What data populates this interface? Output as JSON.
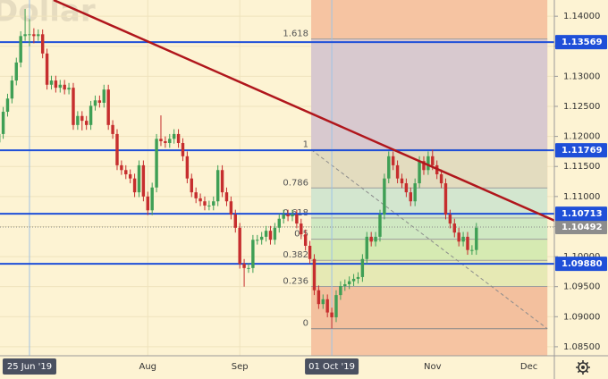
{
  "chart_data": {
    "type": "candlestick",
    "watermark": "Dollar",
    "x": [
      0,
      1,
      2,
      3,
      4,
      5,
      6,
      7,
      8,
      9,
      10,
      11,
      12,
      13,
      14,
      15,
      16,
      17,
      18,
      19,
      20,
      21,
      22,
      23,
      24,
      25,
      26,
      27,
      28,
      29,
      30,
      31,
      32,
      33,
      34,
      35,
      36,
      37,
      38,
      39,
      40,
      41,
      42,
      43,
      44,
      45,
      46,
      47,
      48,
      49,
      50,
      51,
      52,
      53,
      54,
      55,
      56,
      57,
      58,
      59,
      60,
      61,
      62,
      63,
      64,
      65,
      66,
      67,
      68,
      69,
      70,
      71,
      72,
      73,
      74,
      75,
      76,
      77,
      78,
      79,
      80,
      81,
      82,
      83,
      84,
      85,
      86,
      87,
      88,
      89,
      90,
      91,
      92,
      93,
      94,
      95,
      96,
      97,
      98,
      99,
      100,
      101,
      102,
      103,
      104,
      105,
      106,
      107,
      108,
      109
    ],
    "open": [
      1.119,
      1.1204,
      1.1241,
      1.1263,
      1.1293,
      1.1323,
      1.1367,
      1.137,
      1.137,
      1.1367,
      1.137,
      1.1338,
      1.1286,
      1.1293,
      1.1281,
      1.1286,
      1.1278,
      1.1281,
      1.1219,
      1.1234,
      1.1226,
      1.1219,
      1.1251,
      1.126,
      1.1256,
      1.1278,
      1.1219,
      1.1204,
      1.1152,
      1.1144,
      1.1137,
      1.113,
      1.1107,
      1.1152,
      1.11,
      1.1077,
      1.1115,
      1.1196,
      1.1192,
      1.1189,
      1.1196,
      1.1204,
      1.1189,
      1.1167,
      1.113,
      1.1107,
      1.1097,
      1.1092,
      1.1085,
      1.1085,
      1.1092,
      1.1144,
      1.1107,
      1.1092,
      1.107,
      1.1048,
      1.0988,
      1.0981,
      1.0981,
      1.1028,
      1.1028,
      1.1033,
      1.1043,
      1.1028,
      1.1048,
      1.1063,
      1.107,
      1.1067,
      1.107,
      1.1055,
      1.1037,
      1.1018,
      1.0996,
      1.0944,
      1.0921,
      1.0929,
      1.0907,
      1.0899,
      1.0936,
      1.0951,
      1.0954,
      1.0959,
      1.0963,
      1.0966,
      1.0996,
      1.1033,
      1.1025,
      1.1033,
      1.107,
      1.113,
      1.1167,
      1.1152,
      1.113,
      1.1122,
      1.1107,
      1.1092,
      1.1122,
      1.1159,
      1.1144,
      1.1167,
      1.1152,
      1.1137,
      1.1122,
      1.107,
      1.1055,
      1.104,
      1.1025,
      1.1033,
      1.1011,
      1.1011
    ],
    "high": [
      1.1212,
      1.1249,
      1.1271,
      1.1301,
      1.1331,
      1.1375,
      1.1412,
      1.1395,
      1.138,
      1.1378,
      1.1378,
      1.1346,
      1.1301,
      1.1301,
      1.1294,
      1.1294,
      1.1289,
      1.1289,
      1.1242,
      1.1242,
      1.1234,
      1.1259,
      1.1268,
      1.1268,
      1.1286,
      1.1286,
      1.1227,
      1.1212,
      1.116,
      1.1152,
      1.1145,
      1.1138,
      1.116,
      1.116,
      1.1108,
      1.1123,
      1.1204,
      1.1235,
      1.12,
      1.1204,
      1.1212,
      1.1212,
      1.1197,
      1.1175,
      1.1138,
      1.1115,
      1.1105,
      1.11,
      1.1093,
      1.11,
      1.1152,
      1.1152,
      1.1115,
      1.11,
      1.1078,
      1.1056,
      1.0996,
      1.0989,
      1.1036,
      1.1036,
      1.1041,
      1.1051,
      1.1051,
      1.1056,
      1.1071,
      1.1078,
      1.1078,
      1.1078,
      1.1078,
      1.1063,
      1.1045,
      1.1026,
      1.1004,
      1.0952,
      1.0937,
      1.0937,
      1.0915,
      1.0944,
      1.0959,
      1.0962,
      1.0967,
      1.0971,
      1.0974,
      1.1004,
      1.1041,
      1.1041,
      1.1041,
      1.1078,
      1.1138,
      1.1175,
      1.1175,
      1.116,
      1.1138,
      1.113,
      1.1115,
      1.113,
      1.1167,
      1.1167,
      1.1175,
      1.1178,
      1.116,
      1.1145,
      1.113,
      1.1078,
      1.1063,
      1.1048,
      1.1041,
      1.1041,
      1.1019,
      1.1056
    ],
    "low": [
      1.1182,
      1.1196,
      1.1233,
      1.1255,
      1.1285,
      1.1315,
      1.1359,
      1.135,
      1.1355,
      1.1359,
      1.133,
      1.1278,
      1.1278,
      1.1273,
      1.1273,
      1.127,
      1.127,
      1.1211,
      1.1211,
      1.121,
      1.1211,
      1.1211,
      1.1243,
      1.1248,
      1.1248,
      1.1211,
      1.1196,
      1.1144,
      1.1136,
      1.1129,
      1.1122,
      1.1099,
      1.1099,
      1.1092,
      1.1069,
      1.1069,
      1.1107,
      1.1184,
      1.1181,
      1.1181,
      1.1188,
      1.1181,
      1.1159,
      1.1122,
      1.1099,
      1.1089,
      1.1084,
      1.1077,
      1.1077,
      1.1077,
      1.1084,
      1.1099,
      1.1084,
      1.1062,
      1.104,
      1.098,
      1.095,
      1.0973,
      1.0973,
      1.102,
      1.102,
      1.1025,
      1.102,
      1.102,
      1.104,
      1.1055,
      1.1059,
      1.1059,
      1.1047,
      1.1029,
      1.101,
      1.0988,
      1.0936,
      1.0913,
      1.0913,
      1.0899,
      1.088,
      1.0891,
      1.0928,
      1.0943,
      1.0946,
      1.0951,
      1.0955,
      1.0958,
      1.0988,
      1.1017,
      1.1017,
      1.1025,
      1.1062,
      1.1122,
      1.1144,
      1.1122,
      1.1114,
      1.1099,
      1.1084,
      1.1084,
      1.1114,
      1.1136,
      1.1136,
      1.1144,
      1.1129,
      1.1114,
      1.1062,
      1.1047,
      1.1032,
      1.1017,
      1.1017,
      1.1003,
      1.1003,
      1.1003
    ],
    "close": [
      1.1204,
      1.1241,
      1.1263,
      1.1293,
      1.1323,
      1.1367,
      1.137,
      1.137,
      1.1367,
      1.137,
      1.1338,
      1.1286,
      1.1293,
      1.1281,
      1.1286,
      1.1278,
      1.1281,
      1.1219,
      1.1234,
      1.1226,
      1.1219,
      1.1251,
      1.126,
      1.1256,
      1.1278,
      1.1219,
      1.1204,
      1.1152,
      1.1144,
      1.1137,
      1.113,
      1.1107,
      1.1152,
      1.11,
      1.1077,
      1.1115,
      1.1196,
      1.1192,
      1.1189,
      1.1196,
      1.1204,
      1.1189,
      1.1167,
      1.113,
      1.1107,
      1.1097,
      1.1092,
      1.1085,
      1.1085,
      1.1092,
      1.1144,
      1.1107,
      1.1092,
      1.107,
      1.1048,
      1.0988,
      1.0981,
      1.0981,
      1.1028,
      1.1028,
      1.1033,
      1.1043,
      1.1028,
      1.1048,
      1.1063,
      1.107,
      1.1067,
      1.107,
      1.1055,
      1.1037,
      1.1018,
      1.0996,
      1.0944,
      1.0921,
      1.0929,
      1.0907,
      1.0899,
      1.0936,
      1.0951,
      1.0954,
      1.0959,
      1.0963,
      1.0966,
      1.0996,
      1.1033,
      1.1025,
      1.1033,
      1.107,
      1.113,
      1.1167,
      1.1152,
      1.113,
      1.1122,
      1.1107,
      1.1092,
      1.1122,
      1.1159,
      1.1144,
      1.1167,
      1.1152,
      1.1137,
      1.1122,
      1.107,
      1.1055,
      1.104,
      1.1025,
      1.1033,
      1.1011,
      1.1011,
      1.1048
    ],
    "up_color": "#3f9f55",
    "down_color": "#c62e2e",
    "xlim": [
      0.27,
      126.8
    ],
    "xticks": [
      {
        "value": 7,
        "label": "25 Jun '19"
      },
      {
        "value": 34,
        "label": "Aug"
      },
      {
        "value": 55,
        "label": "Sep"
      },
      {
        "value": 76,
        "label": "01 Oct '19"
      },
      {
        "value": 99,
        "label": "Nov"
      },
      {
        "value": 121,
        "label": "Dec"
      }
    ],
    "vlines": [
      7,
      76
    ],
    "ylim": [
      1.0835,
      1.1427
    ],
    "yticks": [
      {
        "value": 1.14,
        "label": "1.14000"
      },
      {
        "value": 1.135,
        "label": "1.13500"
      },
      {
        "value": 1.13,
        "label": "1.13000"
      },
      {
        "value": 1.125,
        "label": "1.12500"
      },
      {
        "value": 1.12,
        "label": "1.12000"
      },
      {
        "value": 1.115,
        "label": "1.11500"
      },
      {
        "value": 1.11,
        "label": "1.11000"
      },
      {
        "value": 1.105,
        "label": "1.10500"
      },
      {
        "value": 1.1,
        "label": "1.10000"
      },
      {
        "value": 1.095,
        "label": "1.09500"
      },
      {
        "value": 1.09,
        "label": "1.09000"
      },
      {
        "value": 1.085,
        "label": "1.08500"
      }
    ],
    "grid": true,
    "levels": [
      {
        "value": 1.13569,
        "label": "1.13569"
      },
      {
        "value": 1.11769,
        "label": "1.11769"
      },
      {
        "value": 1.10713,
        "label": "1.10713"
      },
      {
        "value": 1.0988,
        "label": "1.09880"
      }
    ],
    "level_color": "#1f4fd8",
    "last_price": {
      "value": 1.10492,
      "label": "1.10492"
    },
    "trendline": {
      "x": [
        12.5,
        126.8
      ],
      "y": [
        1.1427,
        1.106
      ],
      "color": "#b0161c"
    },
    "fib": {
      "x": [
        71.3,
        125.2
      ],
      "y": [
        1.1178,
        1.088
      ],
      "levels": [
        0,
        0.236,
        0.382,
        0.5,
        0.618,
        0.786,
        1,
        1.618
      ],
      "fill": "#f6c4a2",
      "band_colors": [
        "#f3c09e",
        "#e6e9b4",
        "#d6eab2",
        "#cfe8c2",
        "#d3e6cf",
        "#e3dcbf",
        "#d8c9cf"
      ]
    }
  }
}
